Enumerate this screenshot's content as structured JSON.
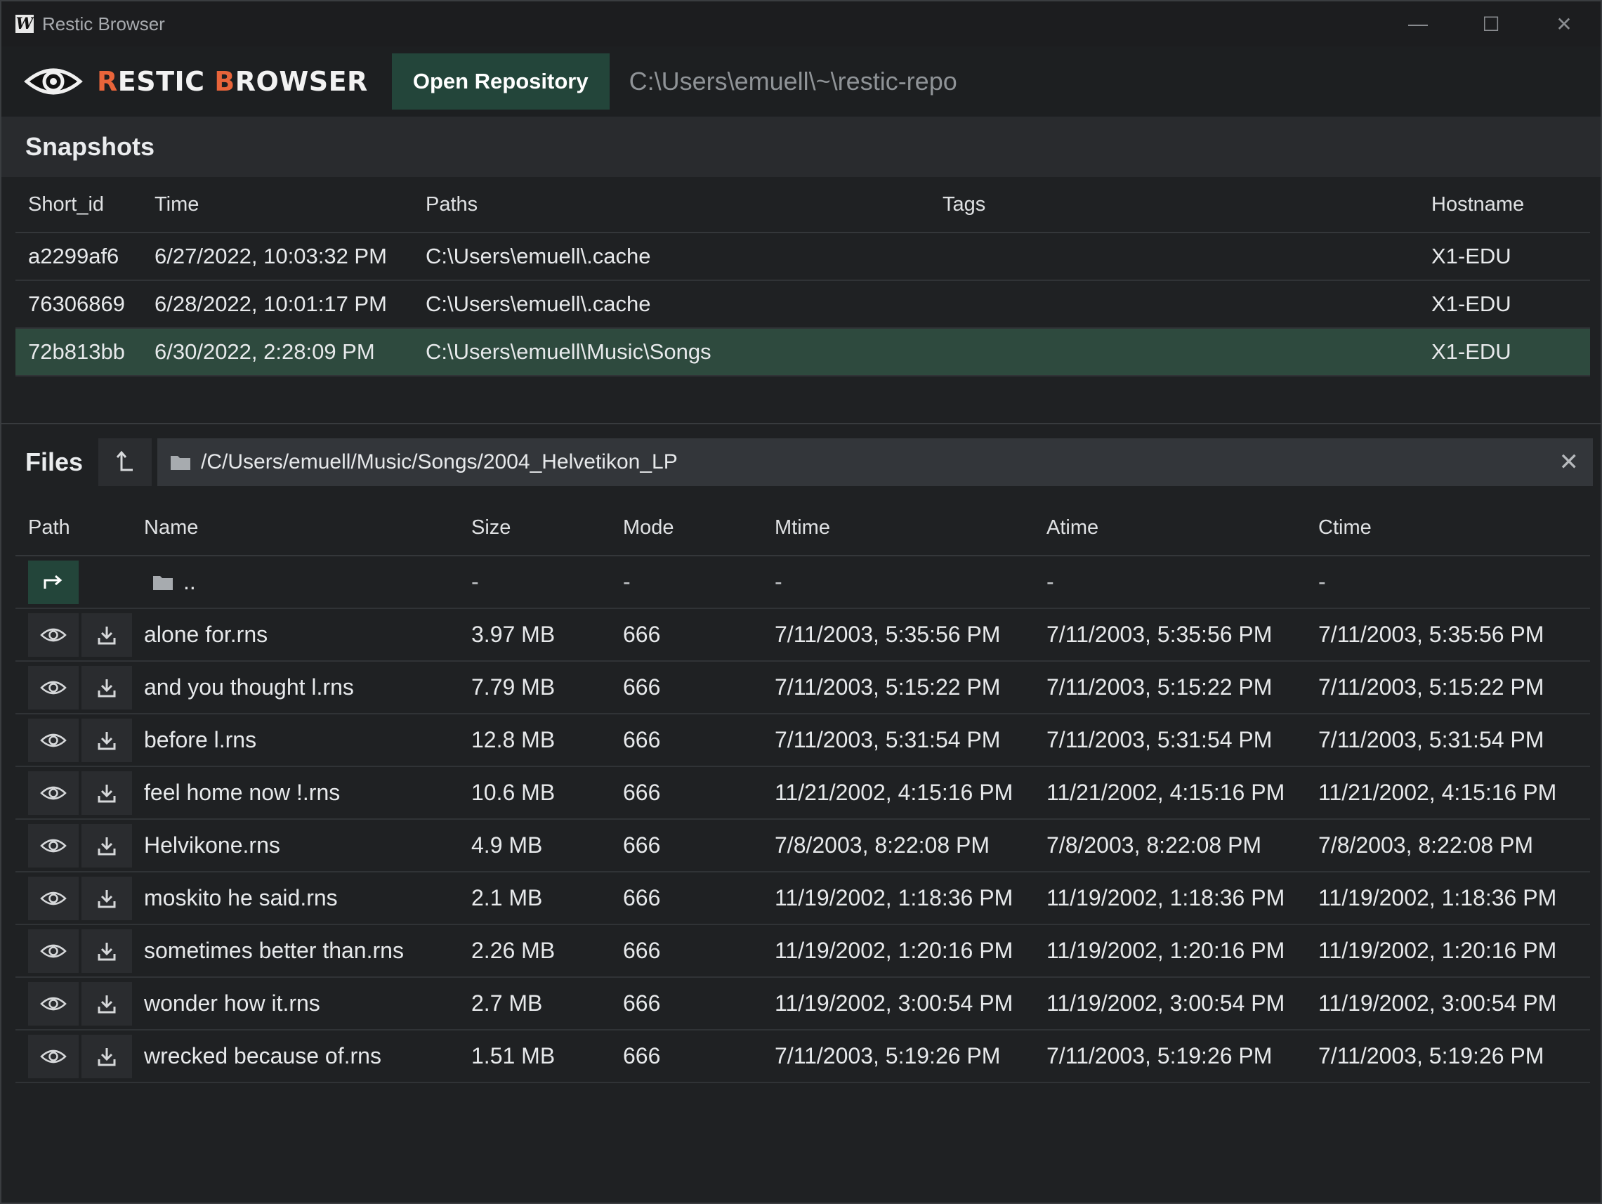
{
  "window": {
    "title": "Restic Browser",
    "controls": [
      "—",
      "☐",
      "✕"
    ]
  },
  "header": {
    "logo_first": "R",
    "logo_mid": "ESTIC ",
    "logo_b": "B",
    "logo_rest": "ROWSER",
    "open_button": "Open Repository",
    "repo_path": "C:\\Users\\emuell\\~\\restic-repo"
  },
  "snapshots": {
    "title": "Snapshots",
    "columns": {
      "id": "Short_id",
      "time": "Time",
      "paths": "Paths",
      "tags": "Tags",
      "host": "Hostname"
    },
    "rows": [
      {
        "id": "a2299af6",
        "time": "6/27/2022, 10:03:32 PM",
        "paths": "C:\\Users\\emuell\\.cache",
        "tags": "",
        "host": "X1-EDU"
      },
      {
        "id": "76306869",
        "time": "6/28/2022, 10:01:17 PM",
        "paths": "C:\\Users\\emuell\\.cache",
        "tags": "",
        "host": "X1-EDU"
      },
      {
        "id": "72b813bb",
        "time": "6/30/2022, 2:28:09 PM",
        "paths": "C:\\Users\\emuell\\Music\\Songs",
        "tags": "",
        "host": "X1-EDU"
      }
    ]
  },
  "files": {
    "title": "Files",
    "up_glyph": "⮤",
    "current_path": "/C/Users/emuell/Music/Songs/2004_Helvetikon_LP",
    "clear_glyph": "✕",
    "columns": {
      "path": "Path",
      "name": "Name",
      "size": "Size",
      "mode": "Mode",
      "mtime": "Mtime",
      "atime": "Atime",
      "ctime": "Ctime"
    },
    "parent": {
      "name": "..",
      "size": "-",
      "mode": "-",
      "mtime": "-",
      "atime": "-",
      "ctime": "-"
    },
    "rows": [
      {
        "name": "alone for.rns",
        "size": "3.97 MB",
        "mode": "666",
        "mtime": "7/11/2003, 5:35:56 PM",
        "atime": "7/11/2003, 5:35:56 PM",
        "ctime": "7/11/2003, 5:35:56 PM"
      },
      {
        "name": "and you thought l.rns",
        "size": "7.79 MB",
        "mode": "666",
        "mtime": "7/11/2003, 5:15:22 PM",
        "atime": "7/11/2003, 5:15:22 PM",
        "ctime": "7/11/2003, 5:15:22 PM"
      },
      {
        "name": "before l.rns",
        "size": "12.8 MB",
        "mode": "666",
        "mtime": "7/11/2003, 5:31:54 PM",
        "atime": "7/11/2003, 5:31:54 PM",
        "ctime": "7/11/2003, 5:31:54 PM"
      },
      {
        "name": "feel home now !.rns",
        "size": "10.6 MB",
        "mode": "666",
        "mtime": "11/21/2002, 4:15:16 PM",
        "atime": "11/21/2002, 4:15:16 PM",
        "ctime": "11/21/2002, 4:15:16 PM"
      },
      {
        "name": "Helvikone.rns",
        "size": "4.9 MB",
        "mode": "666",
        "mtime": "7/8/2003, 8:22:08 PM",
        "atime": "7/8/2003, 8:22:08 PM",
        "ctime": "7/8/2003, 8:22:08 PM"
      },
      {
        "name": "moskito he said.rns",
        "size": "2.1 MB",
        "mode": "666",
        "mtime": "11/19/2002, 1:18:36 PM",
        "atime": "11/19/2002, 1:18:36 PM",
        "ctime": "11/19/2002, 1:18:36 PM"
      },
      {
        "name": "sometimes better than.rns",
        "size": "2.26 MB",
        "mode": "666",
        "mtime": "11/19/2002, 1:20:16 PM",
        "atime": "11/19/2002, 1:20:16 PM",
        "ctime": "11/19/2002, 1:20:16 PM"
      },
      {
        "name": "wonder how it.rns",
        "size": "2.7 MB",
        "mode": "666",
        "mtime": "11/19/2002, 3:00:54 PM",
        "atime": "11/19/2002, 3:00:54 PM",
        "ctime": "11/19/2002, 3:00:54 PM"
      },
      {
        "name": "wrecked because of.rns",
        "size": "1.51 MB",
        "mode": "666",
        "mtime": "7/11/2003, 5:19:26 PM",
        "atime": "7/11/2003, 5:19:26 PM",
        "ctime": "7/11/2003, 5:19:26 PM"
      }
    ]
  },
  "colors": {
    "accent_green": "#23453a",
    "selected_row": "#2e4a3e",
    "logo_orange": "#e8643a"
  },
  "icons": {
    "preview": "eye-icon",
    "restore": "download-icon",
    "folder": "folder-icon",
    "parent_dir": "enter-arrow-icon"
  }
}
